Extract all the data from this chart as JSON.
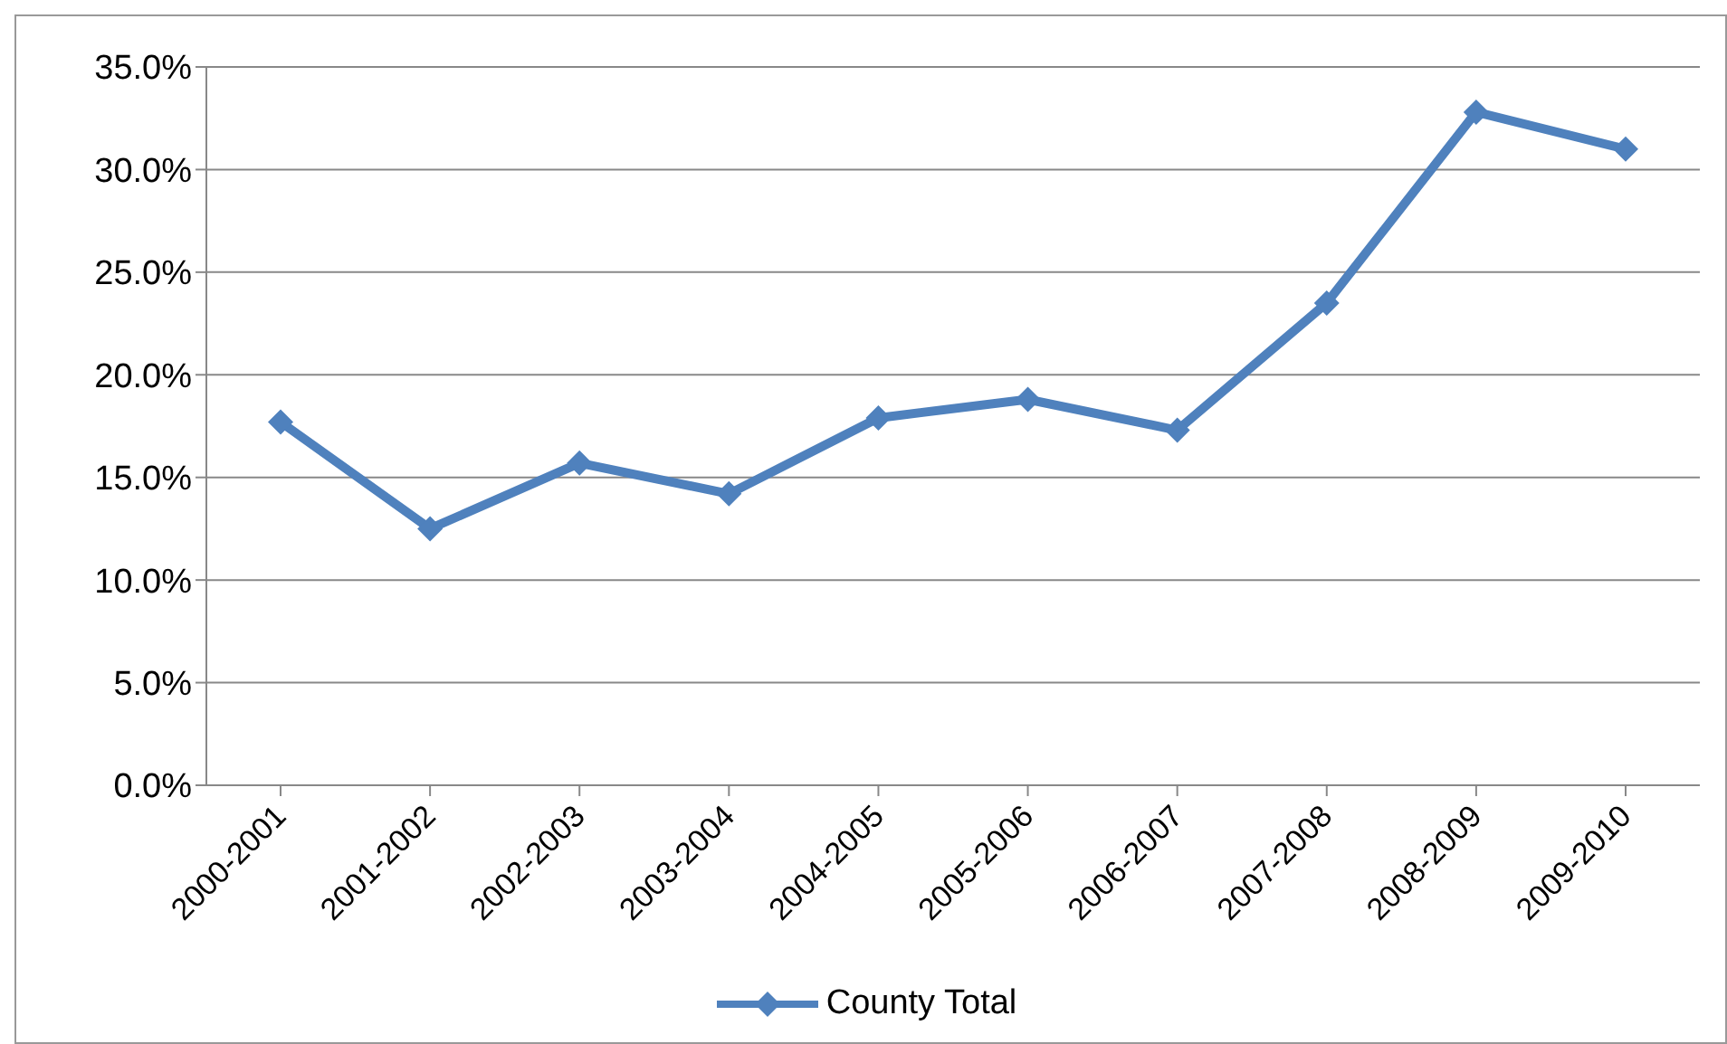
{
  "chart_data": {
    "type": "line",
    "categories": [
      "2000-2001",
      "2001-2002",
      "2002-2003",
      "2003-2004",
      "2004-2005",
      "2005-2006",
      "2006-2007",
      "2007-2008",
      "2008-2009",
      "2009-2010"
    ],
    "series": [
      {
        "name": "County Total",
        "color": "#4f81bd",
        "values": [
          17.7,
          12.5,
          15.7,
          14.2,
          17.9,
          18.8,
          17.3,
          23.5,
          32.8,
          31.0
        ]
      }
    ],
    "ylim": [
      0,
      35
    ],
    "yticks": [
      {
        "value": 0,
        "label": "0.0%"
      },
      {
        "value": 5,
        "label": "5.0%"
      },
      {
        "value": 10,
        "label": "10.0%"
      },
      {
        "value": 15,
        "label": "15.0%"
      },
      {
        "value": 20,
        "label": "20.0%"
      },
      {
        "value": 25,
        "label": "25.0%"
      },
      {
        "value": 30,
        "label": "30.0%"
      },
      {
        "value": 35,
        "label": "35.0%"
      }
    ],
    "grid": "y",
    "legend": "bottom",
    "marker": "diamond",
    "line_style": "solid"
  }
}
